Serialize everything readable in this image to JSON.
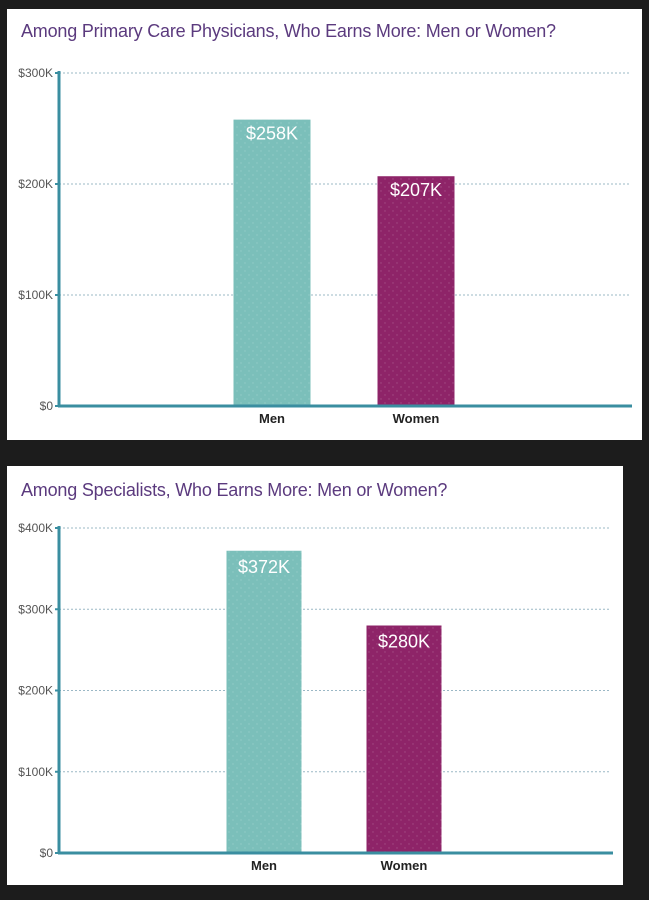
{
  "colors": {
    "men": "#7bbfba",
    "women": "#8e2468",
    "axis": "#3a8ea0",
    "grid": "#9bb8c6",
    "title": "#5b3a7e"
  },
  "chart_data": [
    {
      "type": "bar",
      "title": "Among Primary Care Physicians, Who Earns More: Men or Women?",
      "categories": [
        "Men",
        "Women"
      ],
      "values": [
        258,
        207
      ],
      "value_labels": [
        "$258K",
        "$207K"
      ],
      "yticks": [
        0,
        100,
        200,
        300
      ],
      "ytick_labels": [
        "$0",
        "$100K",
        "$200K",
        "$300K"
      ],
      "ylim": [
        0,
        300
      ],
      "grid": true,
      "xlabel": "",
      "ylabel": ""
    },
    {
      "type": "bar",
      "title": "Among Specialists, Who Earns More: Men or Women?",
      "categories": [
        "Men",
        "Women"
      ],
      "values": [
        372,
        280
      ],
      "value_labels": [
        "$372K",
        "$280K"
      ],
      "yticks": [
        0,
        100,
        200,
        300,
        400
      ],
      "ytick_labels": [
        "$0",
        "$100K",
        "$200K",
        "$300K",
        "$400K"
      ],
      "ylim": [
        0,
        400
      ],
      "grid": true,
      "xlabel": "",
      "ylabel": ""
    }
  ]
}
